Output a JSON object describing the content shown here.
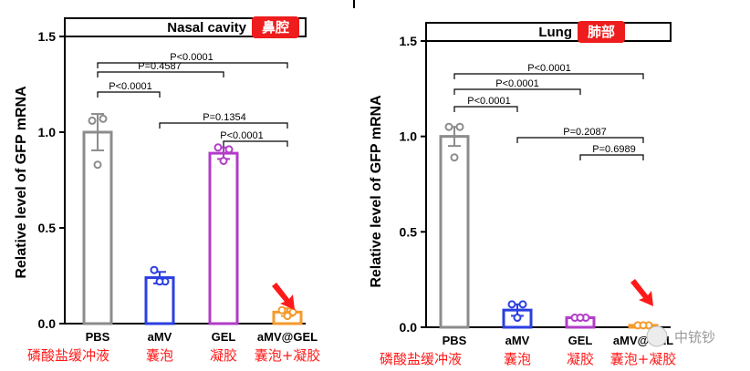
{
  "chart_data": [
    {
      "type": "bar",
      "title": "Nasal cavity",
      "title_tag": "鼻腔",
      "ylabel": "Relative level of GFP mRNA",
      "ylim": [
        0,
        1.5
      ],
      "yticks": [
        "0.0",
        "0.5",
        "1.0",
        "1.5"
      ],
      "categories": [
        "PBS",
        "aMV",
        "GEL",
        "aMV@GEL"
      ],
      "category_cn": [
        "磷酸盐缓冲液",
        "囊泡",
        "凝胶",
        "囊泡+凝胶"
      ],
      "colors": [
        "#8c8c8c",
        "#2b3fe0",
        "#b23cc8",
        "#f59a2c"
      ],
      "values": [
        1.0,
        0.24,
        0.89,
        0.06
      ],
      "errors": [
        0.095,
        0.03,
        0.03,
        0.02
      ],
      "points": [
        [
          1.06,
          1.07,
          0.83
        ],
        [
          0.28,
          0.22,
          0.22
        ],
        [
          0.92,
          0.91,
          0.85
        ],
        [
          0.07,
          0.06,
          0.04
        ]
      ],
      "comparisons": [
        {
          "from": 0,
          "to": 3,
          "label": "P<0.0001"
        },
        {
          "from": 0,
          "to": 2,
          "label": "P=0.4587"
        },
        {
          "from": 0,
          "to": 1,
          "label": "P<0.0001"
        },
        {
          "from": 1,
          "to": 3,
          "label": "P=0.1354"
        },
        {
          "from": 2,
          "to": 3,
          "label": "P<0.0001"
        }
      ]
    },
    {
      "type": "bar",
      "title": "Lung",
      "title_tag": "肺部",
      "ylabel": "Relative level of GFP mRNA",
      "ylim": [
        0,
        1.5
      ],
      "yticks": [
        "0.0",
        "0.5",
        "1.0",
        "1.5"
      ],
      "categories": [
        "PBS",
        "aMV",
        "GEL",
        "aMV@GEL"
      ],
      "category_cn": [
        "磷酸盐缓冲液",
        "囊泡",
        "凝胶",
        "囊泡+凝胶"
      ],
      "colors": [
        "#8c8c8c",
        "#2b3fe0",
        "#b23cc8",
        "#f59a2c"
      ],
      "values": [
        1.0,
        0.09,
        0.05,
        0.01
      ],
      "errors": [
        0.05,
        0.03,
        0.01,
        0.005
      ],
      "points": [
        [
          1.05,
          1.05,
          0.89
        ],
        [
          0.12,
          0.12,
          0.05
        ],
        [
          0.05,
          0.05,
          0.05
        ],
        [
          0.01,
          0.01,
          0.01
        ]
      ],
      "comparisons": [
        {
          "from": 0,
          "to": 3,
          "label": "P<0.0001"
        },
        {
          "from": 0,
          "to": 2,
          "label": "P<0.0001"
        },
        {
          "from": 0,
          "to": 1,
          "label": "P<0.0001"
        },
        {
          "from": 1,
          "to": 3,
          "label": "P=0.2087"
        },
        {
          "from": 2,
          "to": 3,
          "label": "P=0.6989"
        }
      ]
    }
  ],
  "watermark": "中铳钞",
  "tag_color": "#ee1c1c",
  "arrow_color": "#ff1a1a"
}
